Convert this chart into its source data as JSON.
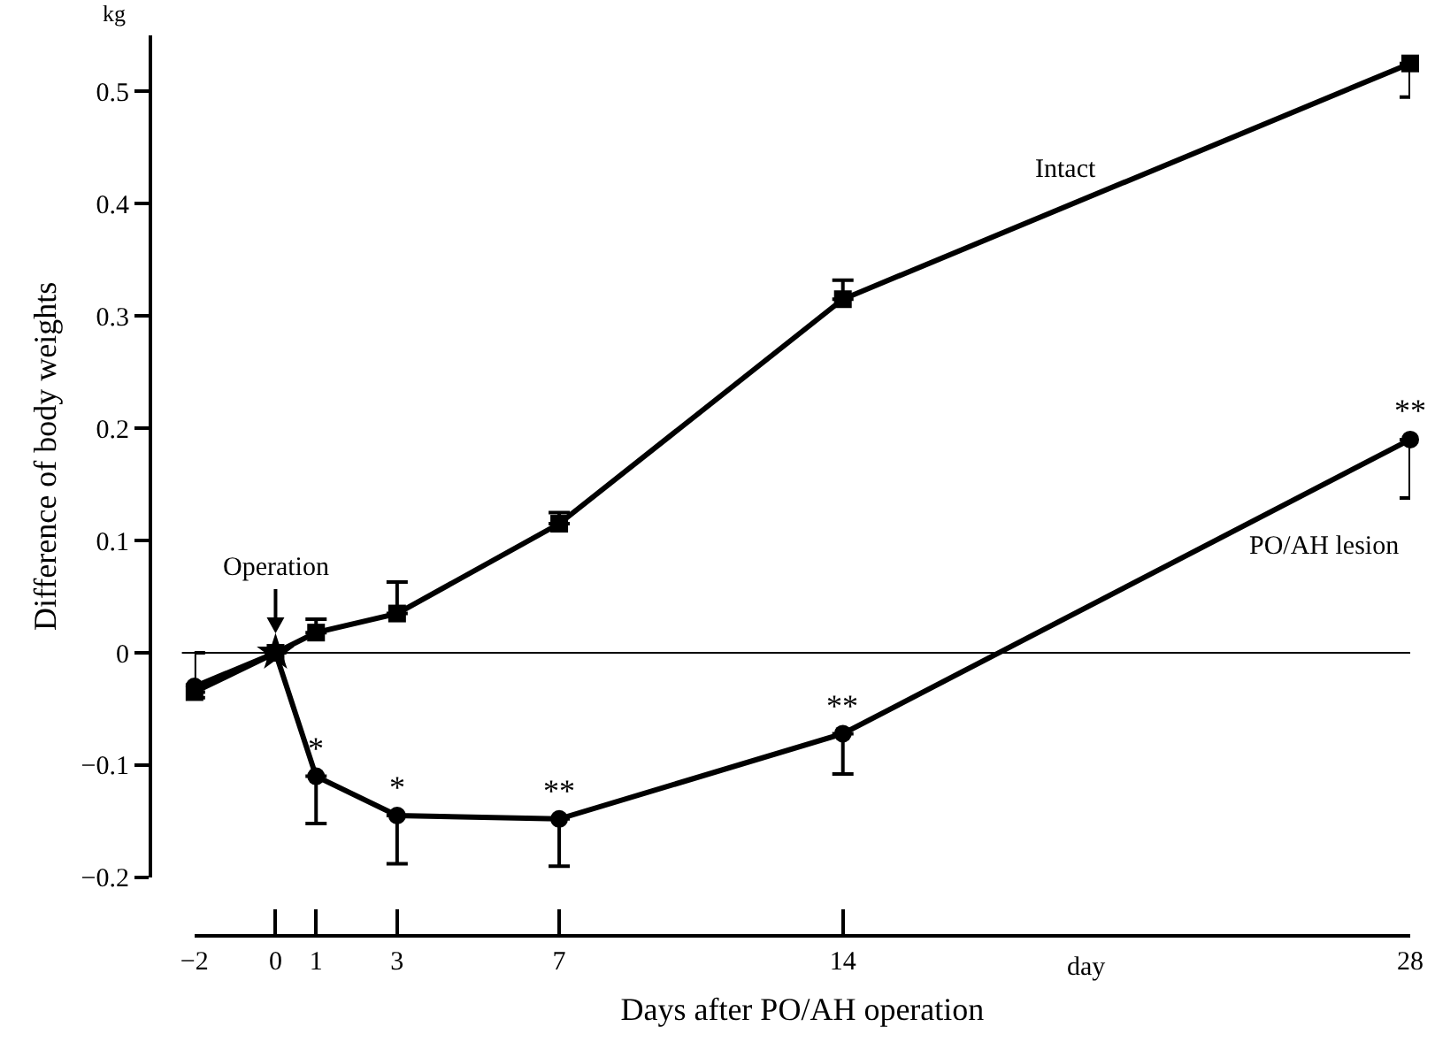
{
  "chart_data": {
    "type": "line",
    "xlabel": "Days after PO/AH operation",
    "ylabel": "Difference of body weights",
    "x": [
      -2,
      0,
      1,
      3,
      7,
      14,
      28
    ],
    "series": [
      {
        "name": "Intact",
        "color": "#000000",
        "marker": "square",
        "values": [
          -0.035,
          0,
          0.018,
          0.035,
          0.115,
          0.315,
          0.525
        ],
        "errors": [
          [
            -0.035,
            0
          ],
          null,
          [
            0.018,
            0.03
          ],
          [
            0.035,
            0.063
          ],
          [
            0.115,
            0.125
          ],
          [
            0.315,
            0.332
          ],
          [
            0.495,
            0.525
          ]
        ]
      },
      {
        "name": "PO/AH lesion",
        "color": "#000000",
        "marker": "circle",
        "values": [
          -0.03,
          0,
          -0.11,
          -0.145,
          -0.148,
          -0.072,
          0.19
        ],
        "errors": [
          [
            -0.04,
            -0.03
          ],
          null,
          [
            -0.152,
            -0.11
          ],
          [
            -0.188,
            -0.145
          ],
          [
            -0.19,
            -0.148
          ],
          [
            -0.108,
            -0.072
          ],
          [
            0.138,
            0.19
          ]
        ]
      },
      {
        "type": "scatter",
        "color": "#000000",
        "marker": "star",
        "x": [
          0
        ],
        "values": [
          0
        ]
      }
    ],
    "xlim": [
      -2,
      28
    ],
    "xticks": [
      -2,
      0,
      1,
      3,
      7,
      14,
      28
    ],
    "ylim": [
      -0.2,
      0.55
    ],
    "yticks": [
      -0.2,
      -0.1,
      0,
      0.1,
      0.2,
      0.3,
      0.4,
      0.5
    ],
    "ref_lines": [
      {
        "axis": "y",
        "value": 0,
        "color": "#000000"
      }
    ],
    "annotations": [
      "kg",
      "day",
      {
        "text": "Operation",
        "x": 0,
        "y": 0
      },
      {
        "text": "*",
        "x": 1,
        "y": -0.11
      },
      {
        "text": "*",
        "x": 3,
        "y": -0.145
      },
      {
        "text": "**",
        "x": 7,
        "y": -0.148
      },
      {
        "text": "**",
        "x": 14,
        "y": -0.072
      },
      {
        "text": "**",
        "x": 28,
        "y": 0.19
      }
    ],
    "grid": false,
    "line_style": "solid"
  }
}
